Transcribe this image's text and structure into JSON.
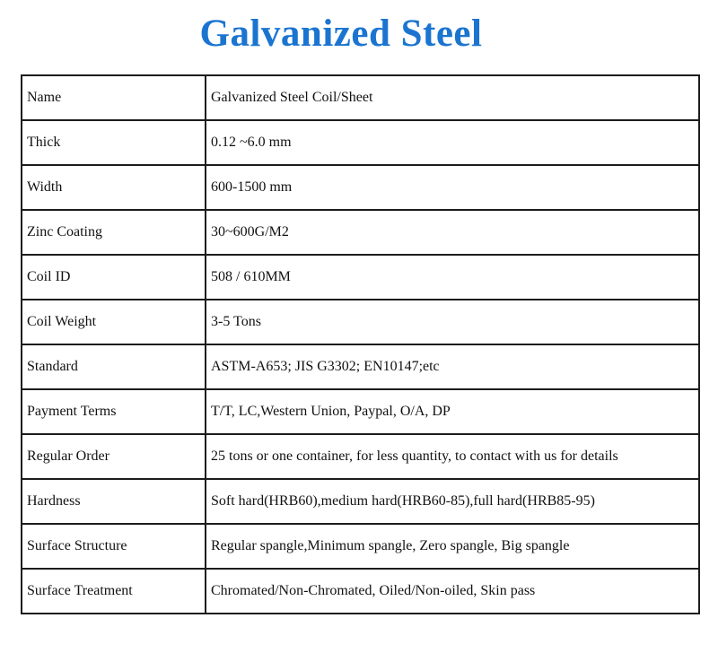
{
  "page": {
    "title": "Galvanized Steel",
    "title_color": "#1b75d0"
  },
  "table": {
    "rows": [
      {
        "label": "Name",
        "value": "Galvanized Steel Coil/Sheet"
      },
      {
        "label": "Thick",
        "value": "0.12 ~6.0 mm"
      },
      {
        "label": "Width",
        "value": "600-1500 mm"
      },
      {
        "label": "Zinc Coating",
        "value": "30~600G/M2"
      },
      {
        "label": "Coil ID",
        "value": "508 / 610MM"
      },
      {
        "label": "Coil Weight",
        "value": "3-5 Tons"
      },
      {
        "label": "Standard",
        "value": "ASTM-A653; JIS G3302; EN10147;etc"
      },
      {
        "label": "Payment Terms",
        "value": "T/T, LC,Western Union, Paypal, O/A, DP"
      },
      {
        "label": "Regular Order",
        "value": "25 tons or one container, for less quantity, to contact with us for details"
      },
      {
        "label": "Hardness",
        "value": "Soft hard(HRB60),medium hard(HRB60-85),full hard(HRB85-95)"
      },
      {
        "label": "Surface Structure",
        "value": "Regular spangle,Minimum spangle, Zero spangle, Big spangle"
      },
      {
        "label": "Surface Treatment",
        "value": "Chromated/Non-Chromated, Oiled/Non-oiled, Skin pass"
      }
    ]
  }
}
